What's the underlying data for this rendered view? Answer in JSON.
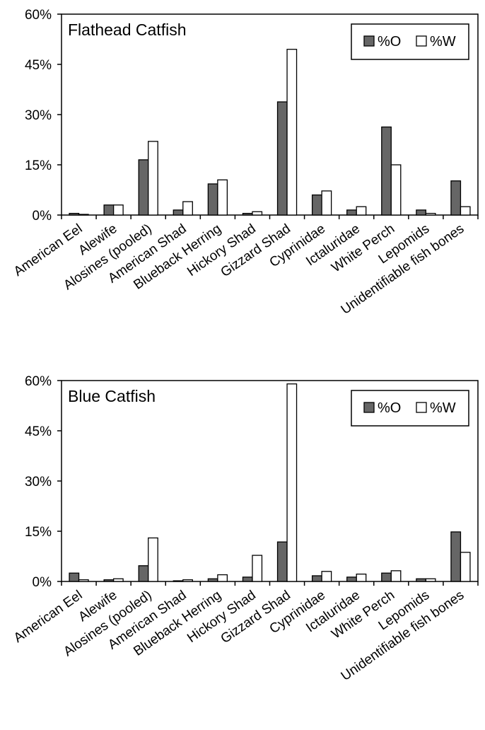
{
  "chart_data": [
    {
      "type": "bar",
      "title": "Flathead Catfish",
      "xlabel": "",
      "ylabel": "",
      "ylim": [
        0,
        60
      ],
      "yticks": [
        "0%",
        "15%",
        "30%",
        "45%",
        "60%"
      ],
      "ytick_values": [
        0,
        15,
        30,
        45,
        60
      ],
      "legend_position": "top-right",
      "grid": false,
      "categories": [
        "American Eel",
        "Alewife",
        "Alosines (pooled)",
        "American Shad",
        "Blueback Herring",
        "Hickory Shad",
        "Gizzard Shad",
        "Cyprinidae",
        "Ictaluridae",
        "White Perch",
        "Lepomids",
        "Unidentifiable fish bones"
      ],
      "series": [
        {
          "name": "%O",
          "color": "#666666",
          "values": [
            0.5,
            3.0,
            16.5,
            1.5,
            9.3,
            0.5,
            33.8,
            6.0,
            1.5,
            26.3,
            1.5,
            10.2
          ]
        },
        {
          "name": "%W",
          "color": "#ffffff",
          "values": [
            0.2,
            3.0,
            22.0,
            4.0,
            10.5,
            1.0,
            49.5,
            7.2,
            2.5,
            15.0,
            0.5,
            2.5
          ]
        }
      ]
    },
    {
      "type": "bar",
      "title": "Blue Catfish",
      "xlabel": "",
      "ylabel": "",
      "ylim": [
        0,
        60
      ],
      "yticks": [
        "0%",
        "15%",
        "30%",
        "45%",
        "60%"
      ],
      "ytick_values": [
        0,
        15,
        30,
        45,
        60
      ],
      "legend_position": "top-right",
      "grid": false,
      "categories": [
        "American Eel",
        "Alewife",
        "Alosines (pooled)",
        "American Shad",
        "Blueback Herring",
        "Hickory Shad",
        "Gizzard Shad",
        "Cyprinidae",
        "Ictaluridae",
        "White Perch",
        "Lepomids",
        "Unidentifiable fish bones"
      ],
      "series": [
        {
          "name": "%O",
          "color": "#666666",
          "values": [
            2.5,
            0.5,
            4.7,
            0.2,
            0.8,
            1.3,
            11.8,
            1.7,
            1.3,
            2.5,
            0.8,
            14.8
          ]
        },
        {
          "name": "%W",
          "color": "#ffffff",
          "values": [
            0.5,
            0.8,
            13.0,
            0.5,
            2.0,
            7.8,
            59.0,
            3.0,
            2.2,
            3.2,
            0.8,
            8.7
          ]
        }
      ]
    }
  ]
}
